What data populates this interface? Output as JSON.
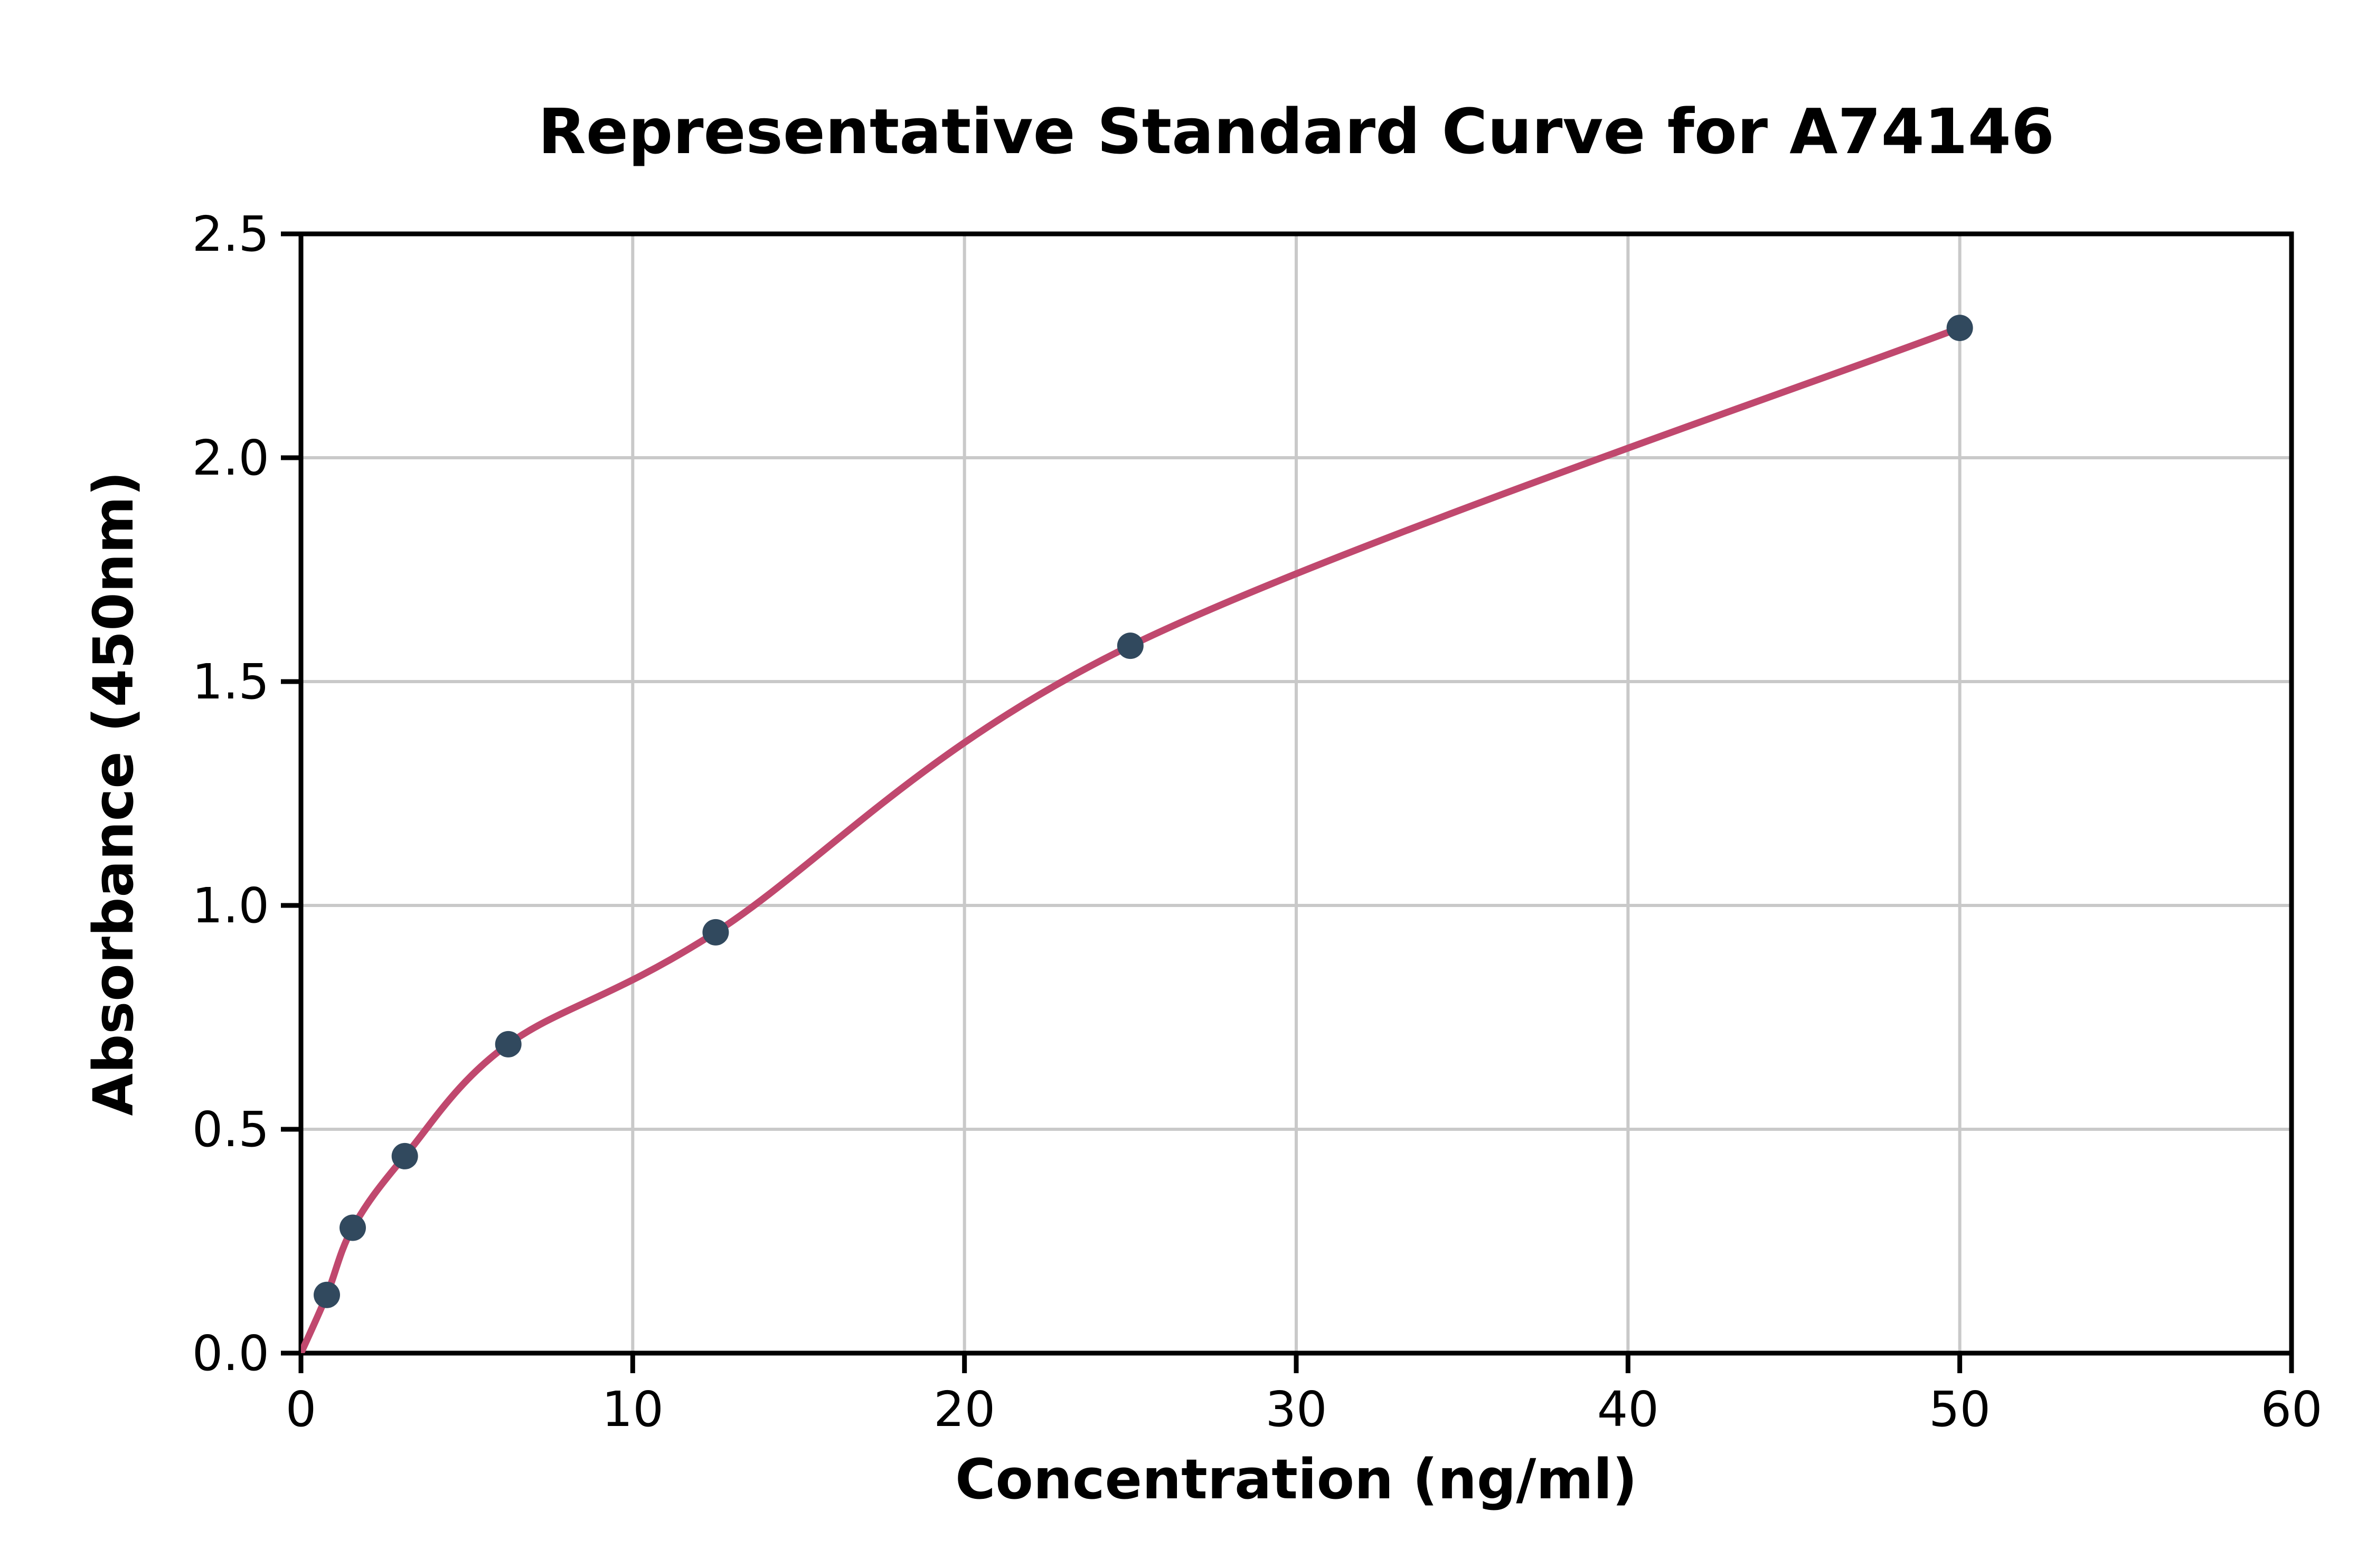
{
  "chart_data": {
    "type": "scatter",
    "title": "Representative Standard Curve for A74146",
    "xlabel": "Concentration (ng/ml)",
    "ylabel": "Absorbance (450nm)",
    "xlim": [
      0,
      60
    ],
    "ylim": [
      0,
      2.5
    ],
    "xticks": [
      0,
      10,
      20,
      30,
      40,
      50,
      60
    ],
    "xtick_labels": [
      "0",
      "10",
      "20",
      "30",
      "40",
      "50",
      "60"
    ],
    "yticks": [
      0,
      0.5,
      1.0,
      1.5,
      2.0,
      2.5
    ],
    "ytick_labels": [
      "0.0",
      "0.5",
      "1.0",
      "1.5",
      "2.0",
      "2.5"
    ],
    "points": [
      [
        0.78,
        0.13
      ],
      [
        1.56,
        0.28
      ],
      [
        3.13,
        0.44
      ],
      [
        6.25,
        0.69
      ],
      [
        12.5,
        0.94
      ],
      [
        25,
        1.58
      ],
      [
        50,
        2.29
      ]
    ],
    "curve_start": [
      0,
      0
    ],
    "grid": true,
    "legend": null,
    "colors": {
      "curve": "#c0486e",
      "marker": "#31495e",
      "grid": "#c9c9c9",
      "axis": "#000000",
      "background": "#ffffff"
    }
  }
}
